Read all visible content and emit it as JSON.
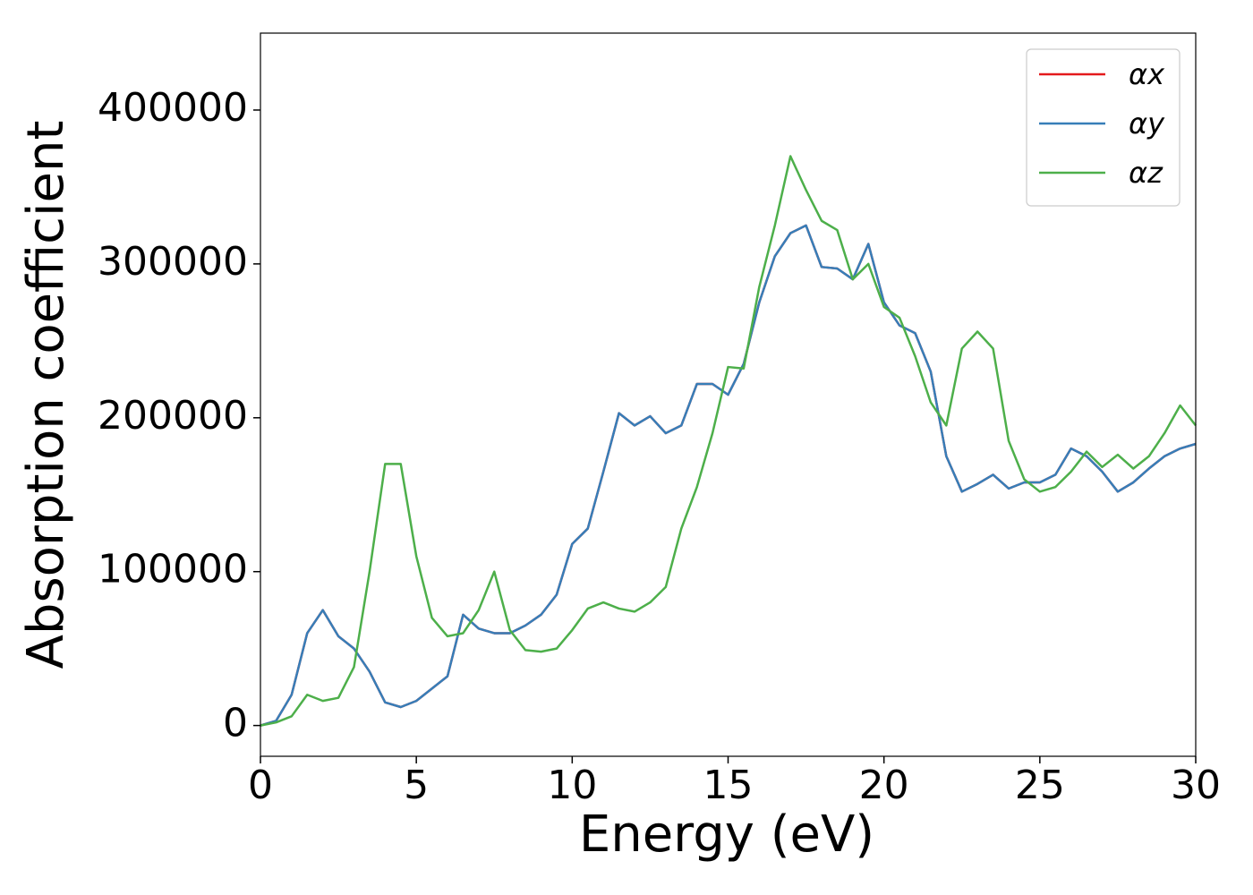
{
  "chart_data": {
    "type": "line",
    "xlabel": "Energy (eV)",
    "ylabel": "Absorption coefficient",
    "xlim": [
      0,
      30
    ],
    "ylim": [
      -20000,
      450000
    ],
    "xticks": [
      0,
      5,
      10,
      15,
      20,
      25,
      30
    ],
    "yticks": [
      0,
      100000,
      200000,
      300000,
      400000
    ],
    "legend": "upper right",
    "x": [
      0,
      0.5,
      1,
      1.5,
      2,
      2.5,
      3,
      3.5,
      4,
      4.5,
      5,
      5.5,
      6,
      6.5,
      7,
      7.5,
      8,
      8.5,
      9,
      9.5,
      10,
      10.5,
      11,
      11.5,
      12,
      12.5,
      13,
      13.5,
      14,
      14.5,
      15,
      15.5,
      16,
      16.5,
      17,
      17.5,
      18,
      18.5,
      19,
      19.5,
      20,
      20.5,
      21,
      21.5,
      22,
      22.5,
      23,
      23.5,
      24,
      24.5,
      25,
      25.5,
      26,
      26.5,
      27,
      27.5,
      28,
      28.5,
      29,
      29.5,
      30
    ],
    "series": [
      {
        "name": "αx",
        "color": "#e41a1c",
        "values": [
          0,
          3000,
          20000,
          60000,
          75000,
          58000,
          50000,
          35000,
          15000,
          12000,
          16000,
          24000,
          32000,
          72000,
          63000,
          60000,
          60000,
          65000,
          72000,
          85000,
          118000,
          128000,
          165000,
          203000,
          195000,
          201000,
          190000,
          195000,
          222000,
          222000,
          215000,
          235000,
          275000,
          305000,
          320000,
          325000,
          298000,
          297000,
          290000,
          313000,
          275000,
          260000,
          255000,
          230000,
          175000,
          152000,
          157000,
          163000,
          154000,
          158000,
          158000,
          163000,
          180000,
          175000,
          165000,
          152000,
          158000,
          167000,
          175000,
          180000,
          183000
        ]
      },
      {
        "name": "αy",
        "color": "#377eb8",
        "values": [
          0,
          3000,
          20000,
          60000,
          75000,
          58000,
          50000,
          35000,
          15000,
          12000,
          16000,
          24000,
          32000,
          72000,
          63000,
          60000,
          60000,
          65000,
          72000,
          85000,
          118000,
          128000,
          165000,
          203000,
          195000,
          201000,
          190000,
          195000,
          222000,
          222000,
          215000,
          235000,
          275000,
          305000,
          320000,
          325000,
          298000,
          297000,
          290000,
          313000,
          275000,
          260000,
          255000,
          230000,
          175000,
          152000,
          157000,
          163000,
          154000,
          158000,
          158000,
          163000,
          180000,
          175000,
          165000,
          152000,
          158000,
          167000,
          175000,
          180000,
          183000
        ]
      },
      {
        "name": "αz",
        "color": "#4daf4a",
        "values": [
          0,
          2000,
          6000,
          20000,
          16000,
          18000,
          38000,
          100000,
          170000,
          170000,
          110000,
          70000,
          58000,
          60000,
          75000,
          100000,
          62000,
          49000,
          48000,
          50000,
          62000,
          76000,
          80000,
          76000,
          74000,
          80000,
          90000,
          128000,
          155000,
          190000,
          233000,
          232000,
          285000,
          325000,
          370000,
          348000,
          328000,
          322000,
          290000,
          300000,
          272000,
          265000,
          240000,
          210000,
          195000,
          245000,
          256000,
          245000,
          185000,
          160000,
          152000,
          155000,
          165000,
          178000,
          168000,
          176000,
          167000,
          175000,
          190000,
          208000,
          195000
        ]
      }
    ]
  }
}
